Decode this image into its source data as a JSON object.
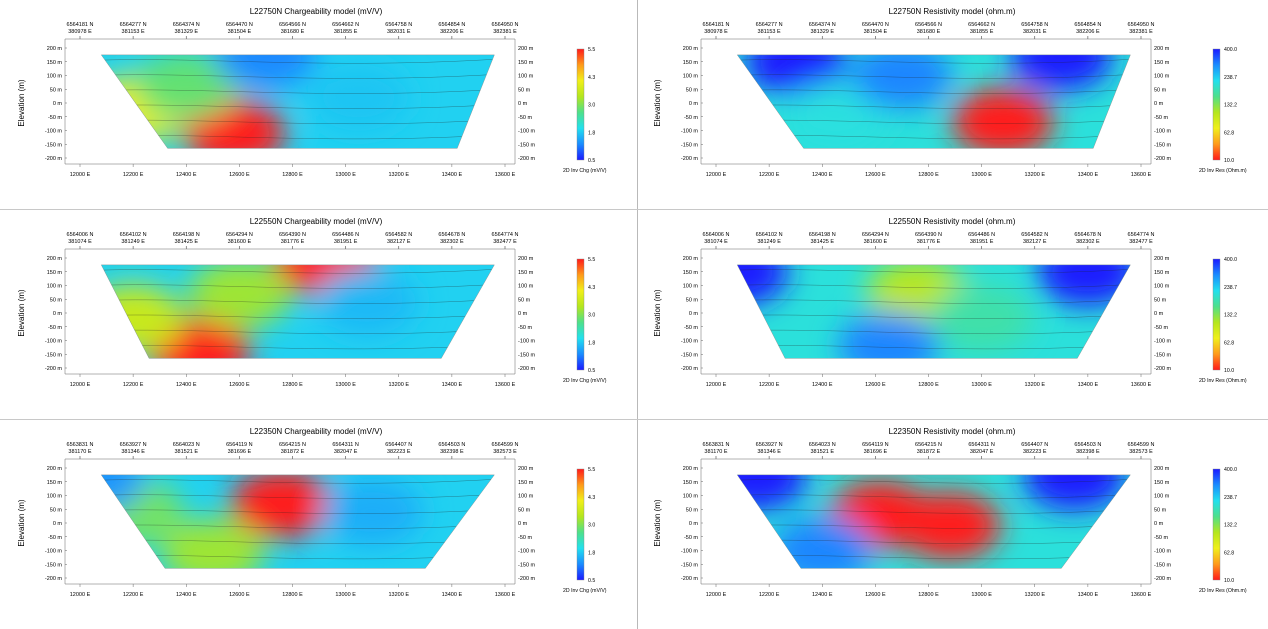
{
  "page": {
    "background": "#ffffff"
  },
  "colormaps": {
    "chargeability": [
      "#1a1aff",
      "#1a8cff",
      "#22e0ee",
      "#4ee08a",
      "#b4e61e",
      "#f0ef1a",
      "#ff9a1a",
      "#ff1a1a"
    ],
    "resistivity": [
      "#ff1a1a",
      "#ff9a1a",
      "#f0ef1a",
      "#b4e61e",
      "#4ee08a",
      "#22e0ee",
      "#1a8cff",
      "#1a1aff"
    ]
  },
  "panels": [
    {
      "id": "l22750-chg",
      "title": "L22750N Chargeability model (mV/V)",
      "cmap": "chargeability",
      "ylabel": "Elevation (m)",
      "northings": [
        "6564181 N",
        "6564277 N",
        "6564374 N",
        "6564470 N",
        "6564566 N",
        "6564662 N",
        "6564758 N",
        "6564854 N",
        "6564950 N"
      ],
      "eastings": [
        "380978 E",
        "381153 E",
        "381329 E",
        "381504 E",
        "381680 E",
        "381855 E",
        "382031 E",
        "382206 E",
        "382381 E"
      ],
      "xticks": [
        "12000 E",
        "12200 E",
        "12400 E",
        "12600 E",
        "12800 E",
        "13000 E",
        "13200 E",
        "13400 E",
        "13600 E"
      ],
      "yticks": [
        "200 m",
        "150 m",
        "100 m",
        "50 m",
        "0 m",
        "-50 m",
        "-100 m",
        "-150 m",
        "-200 m"
      ],
      "colorbar": {
        "ticks": [
          "5.5",
          "4.3",
          "3.0",
          "1.8",
          "0.5"
        ],
        "label": "2D Inv Chg (mV/V)"
      }
    },
    {
      "id": "l22750-res",
      "title": "L22750N Resistivity model (ohm.m)",
      "cmap": "resistivity",
      "ylabel": "Elevation (m)",
      "northings": [
        "6564181 N",
        "6564277 N",
        "6564374 N",
        "6564470 N",
        "6564566 N",
        "6564662 N",
        "6564758 N",
        "6564854 N",
        "6564950 N"
      ],
      "eastings": [
        "380978 E",
        "381153 E",
        "381329 E",
        "381504 E",
        "381680 E",
        "381855 E",
        "382031 E",
        "382206 E",
        "382381 E"
      ],
      "xticks": [
        "12000 E",
        "12200 E",
        "12400 E",
        "12600 E",
        "12800 E",
        "13000 E",
        "13200 E",
        "13400 E",
        "13600 E"
      ],
      "yticks": [
        "200 m",
        "150 m",
        "100 m",
        "50 m",
        "0 m",
        "-50 m",
        "-100 m",
        "-150 m",
        "-200 m"
      ],
      "colorbar": {
        "ticks": [
          "400.0",
          "238.7",
          "132.2",
          "62.8",
          "10.0"
        ],
        "label": "2D Inv Res (Ohm.m)"
      }
    },
    {
      "id": "l22550-chg",
      "title": "L22550N Chargeability model (mV/V)",
      "cmap": "chargeability",
      "ylabel": "Elevation (m)",
      "northings": [
        "6564006 N",
        "6564102 N",
        "6564198 N",
        "6564294 N",
        "6564390 N",
        "6564486 N",
        "6564582 N",
        "6564678 N",
        "6564774 N"
      ],
      "eastings": [
        "381074 E",
        "381249 E",
        "381425 E",
        "381600 E",
        "381776 E",
        "381951 E",
        "382127 E",
        "382302 E",
        "382477 E"
      ],
      "xticks": [
        "12000 E",
        "12200 E",
        "12400 E",
        "12600 E",
        "12800 E",
        "13000 E",
        "13200 E",
        "13400 E",
        "13600 E"
      ],
      "yticks": [
        "200 m",
        "150 m",
        "100 m",
        "50 m",
        "0 m",
        "-50 m",
        "-100 m",
        "-150 m",
        "-200 m"
      ],
      "colorbar": {
        "ticks": [
          "5.5",
          "4.3",
          "3.0",
          "1.8",
          "0.5"
        ],
        "label": "2D Inv Chg (mV/V)"
      }
    },
    {
      "id": "l22550-res",
      "title": "L22550N Resistivity model (ohm.m)",
      "cmap": "resistivity",
      "ylabel": "Elevation (m)",
      "northings": [
        "6564006 N",
        "6564102 N",
        "6564198 N",
        "6564294 N",
        "6564390 N",
        "6564486 N",
        "6564582 N",
        "6564678 N",
        "6564774 N"
      ],
      "eastings": [
        "381074 E",
        "381249 E",
        "381425 E",
        "381600 E",
        "381776 E",
        "381951 E",
        "382127 E",
        "382302 E",
        "382477 E"
      ],
      "xticks": [
        "12000 E",
        "12200 E",
        "12400 E",
        "12600 E",
        "12800 E",
        "13000 E",
        "13200 E",
        "13400 E",
        "13600 E"
      ],
      "yticks": [
        "200 m",
        "150 m",
        "100 m",
        "50 m",
        "0 m",
        "-50 m",
        "-100 m",
        "-150 m",
        "-200 m"
      ],
      "colorbar": {
        "ticks": [
          "400.0",
          "238.7",
          "132.2",
          "62.8",
          "10.0"
        ],
        "label": "2D Inv Res (Ohm.m)"
      }
    },
    {
      "id": "l22350-chg",
      "title": "L22350N Chargeability model (mV/V)",
      "cmap": "chargeability",
      "ylabel": "Elevation (m)",
      "northings": [
        "6563831 N",
        "6563927 N",
        "6564023 N",
        "6564119 N",
        "6564215 N",
        "6564311 N",
        "6564407 N",
        "6564503 N",
        "6564599 N"
      ],
      "eastings": [
        "381170 E",
        "381346 E",
        "381521 E",
        "381696 E",
        "381872 E",
        "382047 E",
        "382223 E",
        "382398 E",
        "382573 E"
      ],
      "xticks": [
        "12000 E",
        "12200 E",
        "12400 E",
        "12600 E",
        "12800 E",
        "13000 E",
        "13200 E",
        "13400 E",
        "13600 E"
      ],
      "yticks": [
        "200 m",
        "150 m",
        "100 m",
        "50 m",
        "0 m",
        "-50 m",
        "-100 m",
        "-150 m",
        "-200 m"
      ],
      "colorbar": {
        "ticks": [
          "5.5",
          "4.3",
          "3.0",
          "1.8",
          "0.5"
        ],
        "label": "2D Inv Chg (mV/V)"
      }
    },
    {
      "id": "l22350-res",
      "title": "L22350N Resistivity model (ohm.m)",
      "cmap": "resistivity",
      "ylabel": "Elevation (m)",
      "northings": [
        "6563831 N",
        "6563927 N",
        "6564023 N",
        "6564119 N",
        "6564215 N",
        "6564311 N",
        "6564407 N",
        "6564503 N",
        "6564599 N"
      ],
      "eastings": [
        "381170 E",
        "381346 E",
        "381521 E",
        "381696 E",
        "381872 E",
        "382047 E",
        "382223 E",
        "382398 E",
        "382573 E"
      ],
      "xticks": [
        "12000 E",
        "12200 E",
        "12400 E",
        "12600 E",
        "12800 E",
        "13000 E",
        "13200 E",
        "13400 E",
        "13600 E"
      ],
      "yticks": [
        "200 m",
        "150 m",
        "100 m",
        "50 m",
        "0 m",
        "-50 m",
        "-100 m",
        "-150 m",
        "-200 m"
      ],
      "colorbar": {
        "ticks": [
          "400.0",
          "238.7",
          "132.2",
          "62.8",
          "10.0"
        ],
        "label": "2D Inv Res (Ohm.m)"
      }
    }
  ],
  "chart_data": [
    {
      "type": "heatmap",
      "title": "L22750N Chargeability model (mV/V)",
      "xlabel": "",
      "ylabel": "Elevation (m)",
      "x_range": [
        12000,
        13600
      ],
      "y_range": [
        -200,
        200
      ],
      "color_range": [
        0.5,
        5.5
      ],
      "colorbar_label": "2D Inv Chg (mV/V)",
      "anomalies": [
        {
          "x": 12580,
          "y": -110,
          "value": 5.5
        },
        {
          "x": 12220,
          "y": -20,
          "value": 4.0
        },
        {
          "x": 12400,
          "y": 60,
          "value": 2.8
        },
        {
          "x": 13050,
          "y": 20,
          "value": 1.7
        },
        {
          "x": 12700,
          "y": 175,
          "value": 1.2
        }
      ]
    },
    {
      "type": "heatmap",
      "title": "L22750N Resistivity model (ohm.m)",
      "xlabel": "",
      "ylabel": "Elevation (m)",
      "x_range": [
        12000,
        13600
      ],
      "y_range": [
        -200,
        200
      ],
      "color_range": [
        10.0,
        400.0
      ],
      "colorbar_label": "2D Inv Res (Ohm.m)",
      "anomalies": [
        {
          "x": 13080,
          "y": -70,
          "value": 400.0
        },
        {
          "x": 12300,
          "y": 150,
          "value": 10.0
        },
        {
          "x": 13300,
          "y": 170,
          "value": 10.0
        },
        {
          "x": 12450,
          "y": -50,
          "value": 130.0
        },
        {
          "x": 12700,
          "y": 100,
          "value": 62.8
        }
      ]
    },
    {
      "type": "heatmap",
      "title": "L22550N Chargeability model (mV/V)",
      "xlabel": "",
      "ylabel": "Elevation (m)",
      "x_range": [
        12000,
        13600
      ],
      "y_range": [
        -200,
        200
      ],
      "color_range": [
        0.5,
        5.5
      ],
      "colorbar_label": "2D Inv Chg (mV/V)",
      "anomalies": [
        {
          "x": 12450,
          "y": -140,
          "value": 5.5
        },
        {
          "x": 12920,
          "y": 185,
          "value": 5.5
        },
        {
          "x": 12600,
          "y": 70,
          "value": 3.2
        },
        {
          "x": 13080,
          "y": 40,
          "value": 1.6
        },
        {
          "x": 12200,
          "y": -20,
          "value": 3.6
        }
      ]
    },
    {
      "type": "heatmap",
      "title": "L22550N Resistivity model (ohm.m)",
      "xlabel": "",
      "ylabel": "Elevation (m)",
      "x_range": [
        12000,
        13600
      ],
      "y_range": [
        -200,
        200
      ],
      "color_range": [
        10.0,
        400.0
      ],
      "colorbar_label": "2D Inv Res (Ohm.m)",
      "anomalies": [
        {
          "x": 12760,
          "y": 70,
          "value": 238.7
        },
        {
          "x": 12080,
          "y": 150,
          "value": 10.0
        },
        {
          "x": 13400,
          "y": 150,
          "value": 10.0
        },
        {
          "x": 12650,
          "y": -120,
          "value": 62.8
        },
        {
          "x": 13000,
          "y": -20,
          "value": 160.0
        }
      ]
    },
    {
      "type": "heatmap",
      "title": "L22350N Chargeability model (mV/V)",
      "xlabel": "",
      "ylabel": "Elevation (m)",
      "x_range": [
        12000,
        13600
      ],
      "y_range": [
        -200,
        200
      ],
      "color_range": [
        0.5,
        5.5
      ],
      "colorbar_label": "2D Inv Chg (mV/V)",
      "anomalies": [
        {
          "x": 12760,
          "y": 70,
          "value": 5.5
        },
        {
          "x": 12500,
          "y": -110,
          "value": 3.2
        },
        {
          "x": 12200,
          "y": 40,
          "value": 2.9
        },
        {
          "x": 13100,
          "y": 40,
          "value": 1.5
        },
        {
          "x": 12050,
          "y": 160,
          "value": 1.3
        }
      ]
    },
    {
      "type": "heatmap",
      "title": "L22350N Resistivity model (ohm.m)",
      "xlabel": "",
      "ylabel": "Elevation (m)",
      "x_range": [
        12000,
        13600
      ],
      "y_range": [
        -200,
        200
      ],
      "color_range": [
        10.0,
        400.0
      ],
      "colorbar_label": "2D Inv Res (Ohm.m)",
      "anomalies": [
        {
          "x": 12620,
          "y": 30,
          "value": 400.0
        },
        {
          "x": 12880,
          "y": -10,
          "value": 400.0
        },
        {
          "x": 12150,
          "y": 170,
          "value": 10.0
        },
        {
          "x": 13350,
          "y": 170,
          "value": 10.0
        },
        {
          "x": 12400,
          "y": -100,
          "value": 62.8
        }
      ]
    }
  ]
}
